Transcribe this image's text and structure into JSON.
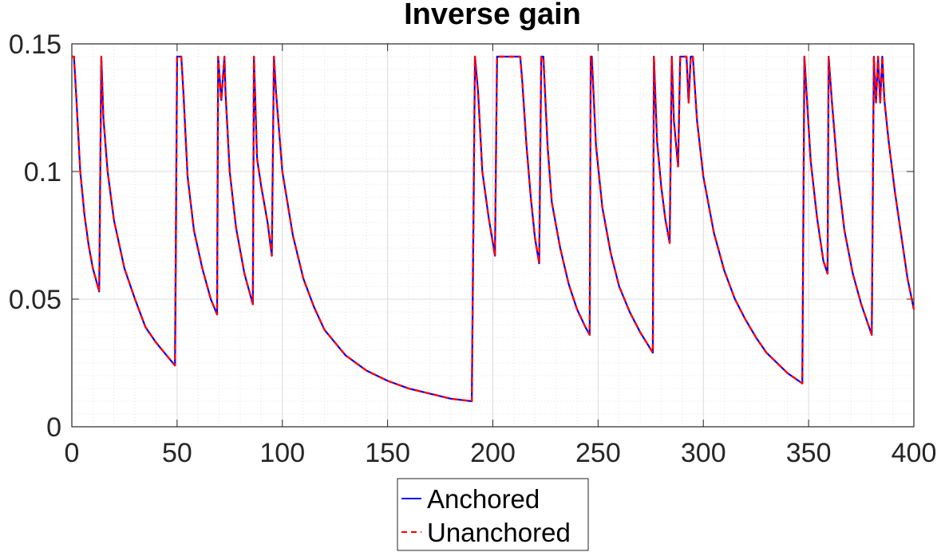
{
  "chart_data": {
    "type": "line",
    "title": "Inverse gain",
    "xlabel": "",
    "ylabel": "",
    "xlim": [
      0,
      400
    ],
    "ylim": [
      0,
      0.15
    ],
    "x_ticks": [
      0,
      50,
      100,
      150,
      200,
      250,
      300,
      350,
      400
    ],
    "x_tick_labels": [
      "0",
      "50",
      "100",
      "150",
      "200",
      "250",
      "300",
      "350",
      "400"
    ],
    "y_ticks": [
      0,
      0.05,
      0.1,
      0.15
    ],
    "y_tick_labels": [
      "0",
      "0.05",
      "0.1",
      "0.15"
    ],
    "grid": true,
    "minor_grid": true,
    "legend_position": "bottom-center",
    "series": [
      {
        "name": "Anchored",
        "color": "#0000ff",
        "style": "solid",
        "points": [
          [
            0,
            0.145
          ],
          [
            1,
            0.145
          ],
          [
            2,
            0.131
          ],
          [
            4,
            0.1
          ],
          [
            6,
            0.083
          ],
          [
            8,
            0.071
          ],
          [
            10,
            0.062
          ],
          [
            13,
            0.053
          ],
          [
            14,
            0.145
          ],
          [
            15,
            0.121
          ],
          [
            17,
            0.1
          ],
          [
            20,
            0.081
          ],
          [
            25,
            0.062
          ],
          [
            30,
            0.05
          ],
          [
            35,
            0.039
          ],
          [
            40,
            0.033
          ],
          [
            45,
            0.028
          ],
          [
            49,
            0.024
          ],
          [
            50,
            0.145
          ],
          [
            52,
            0.145
          ],
          [
            53,
            0.131
          ],
          [
            55,
            0.098
          ],
          [
            58,
            0.077
          ],
          [
            62,
            0.062
          ],
          [
            66,
            0.05
          ],
          [
            69,
            0.044
          ],
          [
            69.5,
            0.145
          ],
          [
            71,
            0.128
          ],
          [
            72.5,
            0.145
          ],
          [
            73,
            0.131
          ],
          [
            75,
            0.1
          ],
          [
            78,
            0.078
          ],
          [
            82,
            0.06
          ],
          [
            86,
            0.048
          ],
          [
            86.5,
            0.145
          ],
          [
            88,
            0.105
          ],
          [
            90,
            0.094
          ],
          [
            93,
            0.08
          ],
          [
            95,
            0.067
          ],
          [
            96,
            0.145
          ],
          [
            97,
            0.131
          ],
          [
            100,
            0.1
          ],
          [
            105,
            0.075
          ],
          [
            110,
            0.058
          ],
          [
            115,
            0.047
          ],
          [
            120,
            0.038
          ],
          [
            130,
            0.028
          ],
          [
            140,
            0.022
          ],
          [
            150,
            0.018
          ],
          [
            160,
            0.015
          ],
          [
            170,
            0.013
          ],
          [
            180,
            0.011
          ],
          [
            190,
            0.01
          ],
          [
            191.5,
            0.145
          ],
          [
            193,
            0.131
          ],
          [
            195,
            0.1
          ],
          [
            198,
            0.082
          ],
          [
            201,
            0.067
          ],
          [
            202,
            0.145
          ],
          [
            213,
            0.145
          ],
          [
            214,
            0.135
          ],
          [
            216,
            0.11
          ],
          [
            218,
            0.09
          ],
          [
            220,
            0.074
          ],
          [
            222,
            0.064
          ],
          [
            223,
            0.145
          ],
          [
            224,
            0.145
          ],
          [
            226,
            0.11
          ],
          [
            228,
            0.088
          ],
          [
            232,
            0.07
          ],
          [
            236,
            0.056
          ],
          [
            240,
            0.046
          ],
          [
            244,
            0.039
          ],
          [
            246,
            0.036
          ],
          [
            246.5,
            0.145
          ],
          [
            247,
            0.145
          ],
          [
            249,
            0.11
          ],
          [
            252,
            0.086
          ],
          [
            256,
            0.068
          ],
          [
            260,
            0.055
          ],
          [
            265,
            0.045
          ],
          [
            270,
            0.037
          ],
          [
            276,
            0.029
          ],
          [
            276.5,
            0.145
          ],
          [
            278,
            0.112
          ],
          [
            280,
            0.094
          ],
          [
            282,
            0.081
          ],
          [
            284,
            0.072
          ],
          [
            285,
            0.145
          ],
          [
            286,
            0.12
          ],
          [
            288,
            0.102
          ],
          [
            289,
            0.145
          ],
          [
            292,
            0.145
          ],
          [
            293,
            0.127
          ],
          [
            294,
            0.145
          ],
          [
            295,
            0.145
          ],
          [
            297,
            0.12
          ],
          [
            300,
            0.098
          ],
          [
            305,
            0.076
          ],
          [
            310,
            0.061
          ],
          [
            315,
            0.05
          ],
          [
            320,
            0.042
          ],
          [
            325,
            0.035
          ],
          [
            330,
            0.029
          ],
          [
            335,
            0.025
          ],
          [
            340,
            0.021
          ],
          [
            347,
            0.017
          ],
          [
            348,
            0.145
          ],
          [
            349,
            0.131
          ],
          [
            351,
            0.104
          ],
          [
            354,
            0.082
          ],
          [
            357,
            0.065
          ],
          [
            359,
            0.06
          ],
          [
            359.5,
            0.145
          ],
          [
            361,
            0.128
          ],
          [
            364,
            0.098
          ],
          [
            367,
            0.077
          ],
          [
            371,
            0.06
          ],
          [
            375,
            0.048
          ],
          [
            380,
            0.036
          ],
          [
            381,
            0.145
          ],
          [
            382,
            0.127
          ],
          [
            383,
            0.145
          ],
          [
            384,
            0.127
          ],
          [
            385,
            0.145
          ],
          [
            386,
            0.128
          ],
          [
            388,
            0.112
          ],
          [
            391,
            0.092
          ],
          [
            394,
            0.075
          ],
          [
            397,
            0.058
          ],
          [
            400,
            0.046
          ]
        ]
      },
      {
        "name": "Unanchored",
        "color": "#ff0000",
        "style": "dashed",
        "points": [
          [
            0,
            0.145
          ],
          [
            1,
            0.145
          ],
          [
            2,
            0.131
          ],
          [
            4,
            0.1
          ],
          [
            6,
            0.083
          ],
          [
            8,
            0.071
          ],
          [
            10,
            0.062
          ],
          [
            13,
            0.053
          ],
          [
            14,
            0.145
          ],
          [
            15,
            0.121
          ],
          [
            17,
            0.1
          ],
          [
            20,
            0.081
          ],
          [
            25,
            0.062
          ],
          [
            30,
            0.05
          ],
          [
            35,
            0.039
          ],
          [
            40,
            0.033
          ],
          [
            45,
            0.028
          ],
          [
            49,
            0.024
          ],
          [
            50,
            0.145
          ],
          [
            52,
            0.145
          ],
          [
            53,
            0.131
          ],
          [
            55,
            0.098
          ],
          [
            58,
            0.077
          ],
          [
            62,
            0.062
          ],
          [
            66,
            0.05
          ],
          [
            69,
            0.044
          ],
          [
            69.5,
            0.145
          ],
          [
            71,
            0.128
          ],
          [
            72.5,
            0.145
          ],
          [
            73,
            0.131
          ],
          [
            75,
            0.1
          ],
          [
            78,
            0.078
          ],
          [
            82,
            0.06
          ],
          [
            86,
            0.048
          ],
          [
            86.5,
            0.145
          ],
          [
            88,
            0.105
          ],
          [
            90,
            0.094
          ],
          [
            93,
            0.08
          ],
          [
            95,
            0.067
          ],
          [
            96,
            0.145
          ],
          [
            97,
            0.131
          ],
          [
            100,
            0.1
          ],
          [
            105,
            0.075
          ],
          [
            110,
            0.058
          ],
          [
            115,
            0.047
          ],
          [
            120,
            0.038
          ],
          [
            130,
            0.028
          ],
          [
            140,
            0.022
          ],
          [
            150,
            0.018
          ],
          [
            160,
            0.015
          ],
          [
            170,
            0.013
          ],
          [
            180,
            0.011
          ],
          [
            190,
            0.01
          ],
          [
            191.5,
            0.145
          ],
          [
            193,
            0.131
          ],
          [
            195,
            0.1
          ],
          [
            198,
            0.082
          ],
          [
            201,
            0.067
          ],
          [
            202,
            0.145
          ],
          [
            213,
            0.145
          ],
          [
            214,
            0.135
          ],
          [
            216,
            0.11
          ],
          [
            218,
            0.09
          ],
          [
            220,
            0.074
          ],
          [
            222,
            0.064
          ],
          [
            223,
            0.145
          ],
          [
            224,
            0.145
          ],
          [
            226,
            0.11
          ],
          [
            228,
            0.088
          ],
          [
            232,
            0.07
          ],
          [
            236,
            0.056
          ],
          [
            240,
            0.046
          ],
          [
            244,
            0.039
          ],
          [
            246,
            0.036
          ],
          [
            246.5,
            0.145
          ],
          [
            247,
            0.145
          ],
          [
            249,
            0.11
          ],
          [
            252,
            0.086
          ],
          [
            256,
            0.068
          ],
          [
            260,
            0.055
          ],
          [
            265,
            0.045
          ],
          [
            270,
            0.037
          ],
          [
            276,
            0.029
          ],
          [
            276.5,
            0.145
          ],
          [
            278,
            0.112
          ],
          [
            280,
            0.094
          ],
          [
            282,
            0.081
          ],
          [
            284,
            0.072
          ],
          [
            285,
            0.145
          ],
          [
            286,
            0.12
          ],
          [
            288,
            0.102
          ],
          [
            289,
            0.145
          ],
          [
            292,
            0.145
          ],
          [
            293,
            0.127
          ],
          [
            294,
            0.145
          ],
          [
            295,
            0.145
          ],
          [
            297,
            0.12
          ],
          [
            300,
            0.098
          ],
          [
            305,
            0.076
          ],
          [
            310,
            0.061
          ],
          [
            315,
            0.05
          ],
          [
            320,
            0.042
          ],
          [
            325,
            0.035
          ],
          [
            330,
            0.029
          ],
          [
            335,
            0.025
          ],
          [
            340,
            0.021
          ],
          [
            347,
            0.017
          ],
          [
            348,
            0.145
          ],
          [
            349,
            0.131
          ],
          [
            351,
            0.104
          ],
          [
            354,
            0.082
          ],
          [
            357,
            0.065
          ],
          [
            359,
            0.06
          ],
          [
            359.5,
            0.145
          ],
          [
            361,
            0.128
          ],
          [
            364,
            0.098
          ],
          [
            367,
            0.077
          ],
          [
            371,
            0.06
          ],
          [
            375,
            0.048
          ],
          [
            380,
            0.036
          ],
          [
            381,
            0.145
          ],
          [
            382,
            0.127
          ],
          [
            383,
            0.145
          ],
          [
            384,
            0.127
          ],
          [
            385,
            0.145
          ],
          [
            386,
            0.128
          ],
          [
            388,
            0.112
          ],
          [
            391,
            0.092
          ],
          [
            394,
            0.075
          ],
          [
            397,
            0.058
          ],
          [
            400,
            0.046
          ]
        ]
      }
    ]
  }
}
